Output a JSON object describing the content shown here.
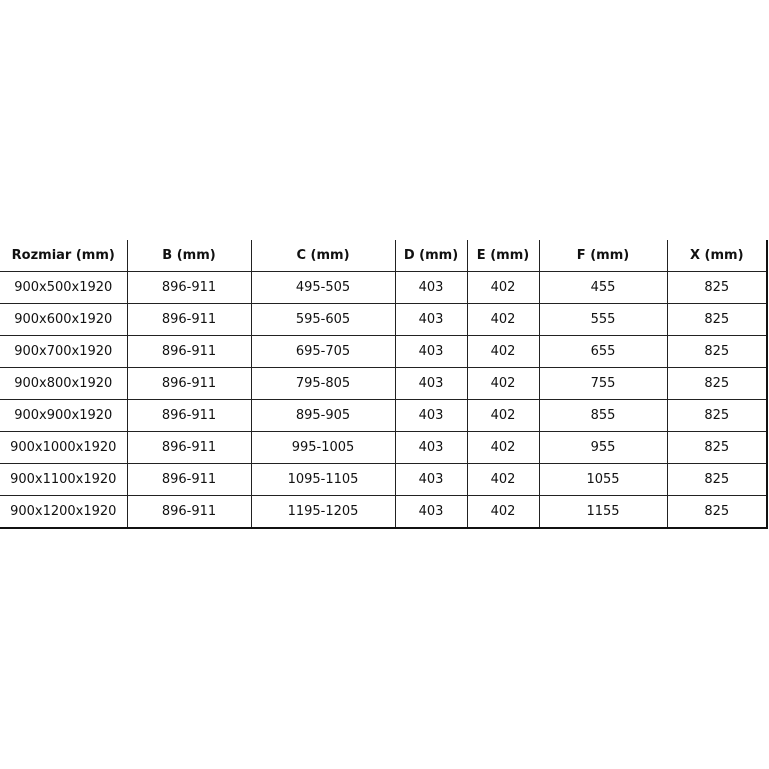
{
  "table": {
    "headers": [
      "Rozmiar (mm)",
      "B (mm)",
      "C (mm)",
      "D (mm)",
      "E (mm)",
      "F (mm)",
      "X (mm)"
    ],
    "rows": [
      [
        "900x500x1920",
        "896-911",
        "495-505",
        "403",
        "402",
        "455",
        "825"
      ],
      [
        "900x600x1920",
        "896-911",
        "595-605",
        "403",
        "402",
        "555",
        "825"
      ],
      [
        "900x700x1920",
        "896-911",
        "695-705",
        "403",
        "402",
        "655",
        "825"
      ],
      [
        "900x800x1920",
        "896-911",
        "795-805",
        "403",
        "402",
        "755",
        "825"
      ],
      [
        "900x900x1920",
        "896-911",
        "895-905",
        "403",
        "402",
        "855",
        "825"
      ],
      [
        "900x1000x1920",
        "896-911",
        "995-1005",
        "403",
        "402",
        "955",
        "825"
      ],
      [
        "900x1100x1920",
        "896-911",
        "1095-1105",
        "403",
        "402",
        "1055",
        "825"
      ],
      [
        "900x1200x1920",
        "896-911",
        "1195-1205",
        "403",
        "402",
        "1155",
        "825"
      ]
    ]
  }
}
